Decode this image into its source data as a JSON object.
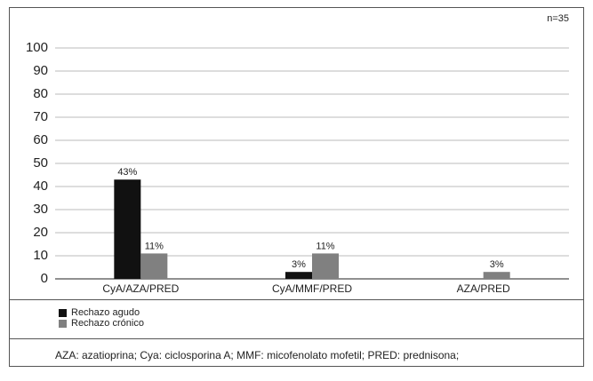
{
  "chart_data": {
    "type": "bar",
    "annotation": "n=35",
    "note": "AZA: azatioprina; Cya: ciclosporina A; MMF: micofenolato mofetil; PRED: prednisona;",
    "categories": [
      "CyA/AZA/PRED",
      "CyA/MMF/PRED",
      "AZA/PRED"
    ],
    "series": [
      {
        "name": "Rechazo agudo",
        "color": "#111111",
        "values": [
          43,
          3,
          0
        ],
        "value_labels": [
          "43%",
          "3%",
          null
        ]
      },
      {
        "name": "Rechazo crónico",
        "color": "#808080",
        "values": [
          11,
          11,
          3
        ],
        "value_labels": [
          "11%",
          "11%",
          "3%"
        ]
      }
    ],
    "ylim": [
      0,
      100
    ],
    "yticks": [
      0,
      10,
      20,
      30,
      40,
      50,
      60,
      70,
      80,
      90,
      100
    ],
    "grid": true
  }
}
